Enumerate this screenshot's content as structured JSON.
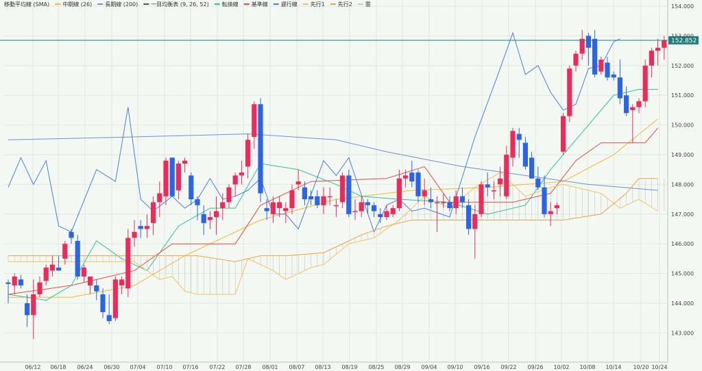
{
  "legend": [
    {
      "label": "移動平均線 (SMA)",
      "color": ""
    },
    {
      "label": "中期線 (26)",
      "color": "#f2b632"
    },
    {
      "label": "長期線 (200)",
      "color": "#6f8fcf"
    },
    {
      "label": "一目均衡表 (9, 26, 52)",
      "color": "#555555"
    },
    {
      "label": "転換線",
      "color": "#27c59a"
    },
    {
      "label": "基準線",
      "color": "#e84a4a"
    },
    {
      "label": "遅行線",
      "color": "#4a7de0"
    },
    {
      "label": "先行1",
      "color": "#f2c35a"
    },
    {
      "label": "先行2",
      "color": "#f0a040"
    },
    {
      "label": "雲",
      "color": "#cccccc"
    }
  ],
  "current_price": {
    "label": "152.852",
    "value": 152.852,
    "color": "#1a7f7f"
  },
  "colors": {
    "up": "#ee2a5a",
    "down": "#2a64e8",
    "background": "#f3f8f3",
    "grid": "#dfe8df",
    "cloud": "#9a9a9a"
  },
  "chart_data": {
    "type": "candlestick",
    "ylim": [
      142.5,
      154.0
    ],
    "y_ticks": [
      "143.000",
      "144.000",
      "145.000",
      "146.000",
      "147.000",
      "148.000",
      "149.000",
      "150.000",
      "151.000",
      "152.000",
      "153.000",
      "154.000"
    ],
    "x_ticks": [
      "06/12",
      "06/18",
      "06/24",
      "06/30",
      "07/04",
      "07/10",
      "07/16",
      "07/22",
      "07/28",
      "08/01",
      "08/07",
      "08/13",
      "08/19",
      "08/25",
      "08/29",
      "09/04",
      "09/10",
      "09/16",
      "09/22",
      "09/26",
      "10/02",
      "10/08",
      "10/14",
      "10/20",
      "10/24"
    ],
    "candles": [
      [
        144.7,
        144.8,
        144.0,
        144.65
      ],
      [
        144.6,
        145.0,
        144.3,
        144.9
      ],
      [
        144.8,
        144.95,
        144.5,
        144.6
      ],
      [
        144.0,
        144.3,
        143.2,
        143.6
      ],
      [
        143.6,
        144.8,
        142.8,
        144.3
      ],
      [
        144.3,
        144.9,
        144.2,
        144.7
      ],
      [
        144.75,
        145.3,
        144.6,
        145.2
      ],
      [
        145.1,
        145.6,
        144.9,
        145.3
      ],
      [
        145.2,
        145.6,
        145.1,
        145.1
      ],
      [
        145.5,
        146.1,
        145.3,
        146.0
      ],
      [
        146.4,
        146.5,
        146.0,
        146.2
      ],
      [
        146.1,
        146.3,
        144.8,
        144.9
      ],
      [
        144.9,
        145.3,
        144.7,
        145.2
      ],
      [
        144.6,
        144.9,
        144.3,
        144.9
      ],
      [
        144.6,
        144.8,
        144.1,
        144.4
      ],
      [
        144.3,
        144.5,
        143.5,
        143.7
      ],
      [
        143.6,
        144.3,
        143.3,
        143.4
      ],
      [
        143.5,
        144.9,
        143.4,
        144.8
      ],
      [
        144.6,
        144.9,
        144.3,
        144.8
      ],
      [
        144.5,
        146.5,
        144.2,
        146.2
      ],
      [
        146.2,
        146.8,
        145.9,
        146.4
      ],
      [
        146.6,
        146.8,
        146.2,
        146.5
      ],
      [
        146.5,
        147.0,
        146.2,
        146.6
      ],
      [
        146.7,
        147.6,
        146.3,
        147.4
      ],
      [
        147.4,
        148.1,
        146.9,
        147.7
      ],
      [
        147.6,
        148.9,
        147.3,
        148.8
      ],
      [
        148.9,
        148.9,
        147.6,
        147.6
      ],
      [
        147.8,
        148.8,
        147.5,
        148.7
      ],
      [
        148.7,
        148.9,
        148.4,
        148.8
      ],
      [
        148.3,
        148.4,
        147.3,
        147.5
      ],
      [
        147.5,
        147.6,
        146.8,
        147.3
      ],
      [
        147.0,
        147.3,
        146.3,
        146.7
      ],
      [
        146.8,
        147.1,
        146.5,
        146.9
      ],
      [
        146.9,
        147.6,
        146.3,
        147.1
      ],
      [
        147.2,
        147.7,
        146.8,
        147.4
      ],
      [
        147.4,
        148.0,
        147.2,
        147.9
      ],
      [
        148.0,
        148.4,
        147.6,
        148.3
      ],
      [
        148.3,
        148.8,
        148.0,
        148.4
      ],
      [
        148.6,
        149.7,
        148.2,
        149.5
      ],
      [
        149.6,
        150.8,
        149.2,
        150.7
      ],
      [
        150.7,
        150.9,
        147.4,
        147.7
      ],
      [
        147.2,
        147.5,
        146.8,
        147.1
      ],
      [
        147.0,
        147.6,
        146.7,
        147.4
      ],
      [
        147.2,
        147.6,
        146.9,
        147.4
      ],
      [
        147.1,
        147.4,
        146.7,
        147.2
      ],
      [
        147.2,
        148.0,
        147.0,
        147.8
      ],
      [
        148.0,
        148.5,
        147.8,
        148.1
      ],
      [
        147.9,
        148.1,
        147.3,
        147.5
      ],
      [
        147.6,
        147.8,
        147.3,
        147.5
      ],
      [
        147.6,
        147.8,
        147.2,
        147.3
      ],
      [
        147.3,
        147.9,
        147.0,
        147.6
      ],
      [
        147.6,
        147.9,
        147.3,
        147.6
      ],
      [
        147.3,
        147.5,
        146.9,
        147.3
      ],
      [
        147.4,
        148.4,
        147.2,
        148.3
      ],
      [
        148.3,
        148.5,
        146.9,
        147.0
      ],
      [
        147.1,
        147.5,
        146.8,
        147.1
      ],
      [
        147.1,
        147.6,
        146.9,
        147.4
      ],
      [
        147.4,
        147.5,
        147.0,
        147.3
      ],
      [
        147.3,
        147.4,
        146.9,
        147.1
      ],
      [
        147.0,
        147.2,
        146.7,
        146.9
      ],
      [
        146.9,
        147.3,
        146.8,
        147.1
      ],
      [
        147.0,
        147.3,
        146.9,
        147.2
      ],
      [
        147.2,
        148.5,
        147.1,
        148.2
      ],
      [
        148.2,
        148.5,
        147.9,
        148.3
      ],
      [
        148.4,
        148.8,
        147.9,
        148.1
      ],
      [
        148.4,
        148.5,
        147.4,
        147.6
      ],
      [
        147.6,
        148.2,
        147.3,
        147.8
      ],
      [
        147.5,
        147.9,
        147.2,
        147.4
      ],
      [
        147.4,
        147.6,
        146.4,
        147.4
      ],
      [
        147.4,
        147.7,
        147.2,
        147.4
      ],
      [
        147.4,
        147.6,
        147.1,
        147.2
      ],
      [
        147.2,
        147.8,
        147.0,
        147.6
      ],
      [
        147.6,
        147.9,
        147.2,
        147.4
      ],
      [
        147.3,
        147.5,
        146.3,
        146.5
      ],
      [
        146.5,
        147.3,
        145.5,
        147.0
      ],
      [
        147.0,
        148.1,
        146.9,
        148.0
      ],
      [
        148.0,
        148.4,
        147.6,
        147.9
      ],
      [
        147.8,
        148.1,
        147.5,
        147.8
      ],
      [
        148.0,
        148.6,
        147.6,
        148.2
      ],
      [
        147.6,
        149.3,
        147.5,
        149.0
      ],
      [
        148.9,
        149.9,
        148.6,
        149.8
      ],
      [
        149.7,
        149.9,
        148.9,
        149.5
      ],
      [
        149.4,
        149.6,
        148.5,
        148.6
      ],
      [
        148.9,
        149.1,
        148.2,
        148.2
      ],
      [
        148.2,
        148.6,
        147.8,
        147.9
      ],
      [
        147.9,
        148.3,
        146.9,
        147.0
      ],
      [
        147.0,
        147.4,
        146.6,
        147.1
      ],
      [
        147.2,
        147.4,
        147.0,
        147.3
      ],
      [
        149.1,
        150.4,
        149.0,
        150.3
      ],
      [
        150.3,
        152.0,
        150.1,
        151.9
      ],
      [
        152.0,
        152.5,
        151.8,
        152.4
      ],
      [
        152.4,
        153.2,
        152.2,
        152.9
      ],
      [
        153.0,
        153.1,
        152.0,
        152.6
      ],
      [
        152.9,
        153.2,
        151.6,
        151.7
      ],
      [
        151.8,
        152.3,
        151.7,
        152.2
      ],
      [
        152.1,
        152.3,
        151.5,
        151.6
      ],
      [
        151.7,
        151.8,
        151.5,
        151.6
      ],
      [
        151.6,
        152.2,
        150.7,
        150.9
      ],
      [
        151.0,
        151.3,
        150.3,
        150.4
      ],
      [
        150.5,
        150.7,
        149.4,
        150.6
      ],
      [
        150.6,
        150.9,
        150.4,
        150.8
      ],
      [
        150.8,
        152.2,
        150.6,
        152.0
      ],
      [
        152.0,
        152.6,
        151.6,
        152.5
      ],
      [
        152.5,
        152.9,
        152.0,
        152.6
      ],
      [
        152.6,
        153.0,
        152.2,
        152.85
      ]
    ],
    "series": [
      {
        "name": "中期線 (26)",
        "key": "mid",
        "values": [
          [
            0,
            144.2
          ],
          [
            10,
            144.2
          ],
          [
            20,
            144.6
          ],
          [
            28,
            145.6
          ],
          [
            40,
            146.8
          ],
          [
            52,
            147.5
          ],
          [
            64,
            147.8
          ],
          [
            76,
            147.9
          ],
          [
            82,
            148.0
          ],
          [
            88,
            148.1
          ],
          [
            96,
            149.0
          ],
          [
            103,
            150.2
          ]
        ]
      },
      {
        "name": "長期線 (200)",
        "key": "long",
        "values": [
          [
            0,
            149.5
          ],
          [
            20,
            149.6
          ],
          [
            38,
            149.7
          ],
          [
            52,
            149.5
          ],
          [
            60,
            149.1
          ],
          [
            72,
            148.6
          ],
          [
            82,
            148.3
          ],
          [
            92,
            148.0
          ],
          [
            103,
            147.8
          ]
        ]
      },
      {
        "name": "転換線",
        "key": "tenkan",
        "values": [
          [
            0,
            144.3
          ],
          [
            6,
            144.1
          ],
          [
            10,
            144.6
          ],
          [
            14,
            146.1
          ],
          [
            18,
            145.5
          ],
          [
            22,
            145.1
          ],
          [
            27,
            146.6
          ],
          [
            32,
            147.2
          ],
          [
            36,
            147.2
          ],
          [
            40,
            148.7
          ],
          [
            46,
            148.5
          ],
          [
            52,
            148.0
          ],
          [
            56,
            147.6
          ],
          [
            62,
            147.5
          ],
          [
            70,
            147.4
          ],
          [
            76,
            147.0
          ],
          [
            82,
            147.3
          ],
          [
            86,
            148.5
          ],
          [
            90,
            149.5
          ],
          [
            96,
            151.0
          ],
          [
            100,
            151.2
          ],
          [
            103,
            151.2
          ]
        ]
      },
      {
        "name": "基準線",
        "key": "kijun",
        "values": [
          [
            0,
            144.3
          ],
          [
            10,
            144.6
          ],
          [
            20,
            145.1
          ],
          [
            26,
            146.0
          ],
          [
            36,
            146.0
          ],
          [
            40,
            147.3
          ],
          [
            48,
            148.1
          ],
          [
            60,
            148.2
          ],
          [
            66,
            148.6
          ],
          [
            70,
            147.4
          ],
          [
            80,
            147.4
          ],
          [
            86,
            147.7
          ],
          [
            90,
            148.8
          ],
          [
            94,
            149.4
          ],
          [
            101,
            149.4
          ],
          [
            103,
            149.9
          ]
        ]
      },
      {
        "name": "遅行線",
        "key": "chikou",
        "values": [
          [
            0,
            147.9
          ],
          [
            2,
            148.9
          ],
          [
            4,
            148.0
          ],
          [
            6,
            148.8
          ],
          [
            8,
            146.6
          ],
          [
            10,
            146.4
          ],
          [
            14,
            148.5
          ],
          [
            17,
            148.1
          ],
          [
            19,
            150.6
          ],
          [
            21,
            147.5
          ],
          [
            23,
            147.1
          ],
          [
            26,
            147.6
          ],
          [
            28,
            147.2
          ],
          [
            30,
            147.5
          ],
          [
            32,
            148.2
          ],
          [
            34,
            147.5
          ],
          [
            36,
            147.6
          ],
          [
            38,
            147.8
          ],
          [
            40,
            148.2
          ],
          [
            42,
            147.0
          ],
          [
            44,
            147.0
          ],
          [
            46,
            146.5
          ],
          [
            50,
            148.8
          ],
          [
            52,
            148.3
          ],
          [
            54,
            148.9
          ],
          [
            58,
            146.4
          ],
          [
            60,
            147.3
          ],
          [
            62,
            147.5
          ],
          [
            64,
            147.1
          ],
          [
            66,
            147.2
          ],
          [
            70,
            146.9
          ],
          [
            74,
            149.6
          ],
          [
            78,
            151.9
          ],
          [
            80,
            153.1
          ],
          [
            82,
            151.7
          ],
          [
            84,
            152.0
          ],
          [
            86,
            151.1
          ],
          [
            88,
            150.5
          ],
          [
            90,
            150.7
          ],
          [
            92,
            151.9
          ],
          [
            94,
            152.0
          ],
          [
            96,
            152.8
          ],
          [
            97,
            152.9
          ]
        ]
      },
      {
        "name": "先行1",
        "key": "senkou1",
        "values": [
          [
            0,
            145.4
          ],
          [
            20,
            145.4
          ],
          [
            22,
            145.1
          ],
          [
            24,
            144.8
          ],
          [
            26,
            144.9
          ],
          [
            28,
            144.4
          ],
          [
            30,
            144.3
          ],
          [
            36,
            144.3
          ],
          [
            38,
            145.5
          ],
          [
            42,
            145.1
          ],
          [
            44,
            144.8
          ],
          [
            48,
            145.2
          ],
          [
            50,
            145.3
          ],
          [
            54,
            146.0
          ],
          [
            58,
            146.2
          ],
          [
            62,
            146.8
          ],
          [
            66,
            147.6
          ],
          [
            70,
            147.2
          ],
          [
            74,
            147.9
          ],
          [
            78,
            148.4
          ],
          [
            82,
            147.6
          ],
          [
            86,
            147.9
          ],
          [
            88,
            148.0
          ],
          [
            94,
            147.7
          ],
          [
            97,
            147.2
          ],
          [
            100,
            147.5
          ],
          [
            103,
            147.1
          ]
        ]
      },
      {
        "name": "先行2",
        "key": "senkou2",
        "values": [
          [
            0,
            145.6
          ],
          [
            20,
            145.6
          ],
          [
            30,
            145.6
          ],
          [
            36,
            145.4
          ],
          [
            40,
            145.6
          ],
          [
            44,
            145.6
          ],
          [
            50,
            145.7
          ],
          [
            56,
            146.3
          ],
          [
            60,
            146.6
          ],
          [
            64,
            146.8
          ],
          [
            70,
            146.8
          ],
          [
            76,
            146.8
          ],
          [
            82,
            146.8
          ],
          [
            88,
            146.8
          ],
          [
            94,
            147.0
          ],
          [
            98,
            147.7
          ],
          [
            100,
            148.2
          ],
          [
            103,
            148.2
          ]
        ]
      }
    ]
  }
}
